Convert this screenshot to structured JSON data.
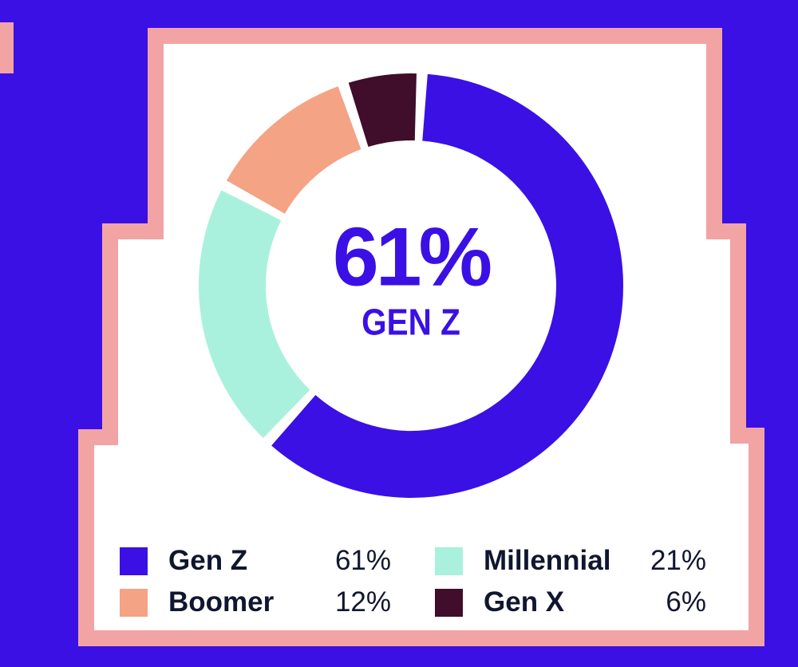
{
  "chart_data": {
    "type": "pie",
    "variant": "donut",
    "title": "",
    "center": {
      "value": "61%",
      "caption": "GEN Z"
    },
    "segments": [
      {
        "label": "Gen Z",
        "value": 61,
        "color": "#3A10E5"
      },
      {
        "label": "Millennial",
        "value": 21,
        "color": "#A9F1DD"
      },
      {
        "label": "Boomer",
        "value": 12,
        "color": "#F4A384"
      },
      {
        "label": "Gen X",
        "value": 6,
        "color": "#400D2B"
      }
    ],
    "legend": [
      {
        "label": "Gen Z",
        "pct": "61%",
        "color": "#3A10E5"
      },
      {
        "label": "Millennial",
        "pct": "21%",
        "color": "#A9F1DD"
      },
      {
        "label": "Boomer",
        "pct": "12%",
        "color": "#F4A384"
      },
      {
        "label": "Gen X",
        "pct": "6%",
        "color": "#400D2B"
      }
    ],
    "layout": {
      "start_angle_deg": 3,
      "pad_angle_deg": 3,
      "legend_position": "bottom",
      "grid": false
    }
  },
  "colors": {
    "background": "#3A10E5",
    "frame_pink": "#F2A3A3",
    "card_white": "#FFFFFF",
    "legend_text": "#10162F",
    "center_text": "#3A10E5"
  }
}
